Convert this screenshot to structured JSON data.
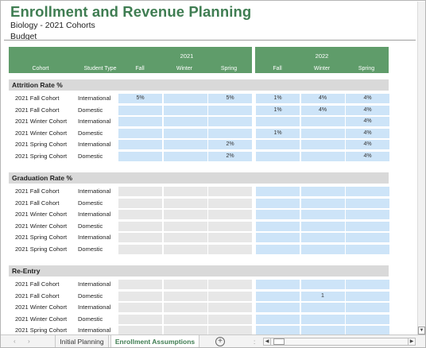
{
  "header": {
    "title": "Enrollment and Revenue Planning",
    "subtitle": "Biology - 2021 Cohorts",
    "scenario": "Budget"
  },
  "column_headers": {
    "year_2021": "2021",
    "year_2022": "2022",
    "cohort": "Cohort",
    "student_type": "Student Type",
    "fall": "Fall",
    "winter": "Winter",
    "spring": "Spring"
  },
  "sections": [
    {
      "title": "Attrition Rate %",
      "rows": [
        {
          "cohort": "2021 Fall Cohort",
          "type": "International",
          "y2021": [
            "5%",
            "",
            "5%"
          ],
          "y2022": [
            "1%",
            "4%",
            "4%"
          ]
        },
        {
          "cohort": "2021 Fall Cohort",
          "type": "Domestic",
          "y2021": [
            "",
            "",
            ""
          ],
          "y2022": [
            "1%",
            "4%",
            "4%"
          ]
        },
        {
          "cohort": "2021 Winter Cohort",
          "type": "International",
          "y2021": [
            "",
            "",
            ""
          ],
          "y2022": [
            "",
            "",
            "4%"
          ]
        },
        {
          "cohort": "2021 Winter Cohort",
          "type": "Domestic",
          "y2021": [
            "",
            "",
            ""
          ],
          "y2022": [
            "1%",
            "",
            "4%"
          ]
        },
        {
          "cohort": "2021 Spring Cohort",
          "type": "International",
          "y2021": [
            "",
            "",
            "2%"
          ],
          "y2022": [
            "",
            "",
            "4%"
          ]
        },
        {
          "cohort": "2021 Spring Cohort",
          "type": "Domestic",
          "y2021": [
            "",
            "",
            "2%"
          ],
          "y2022": [
            "",
            "",
            "4%"
          ]
        }
      ]
    },
    {
      "title": "Graduation Rate %",
      "rows": [
        {
          "cohort": "2021 Fall Cohort",
          "type": "International",
          "y2021": [
            "",
            "",
            ""
          ],
          "y2022": [
            "",
            "",
            ""
          ]
        },
        {
          "cohort": "2021 Fall Cohort",
          "type": "Domestic",
          "y2021": [
            "",
            "",
            ""
          ],
          "y2022": [
            "",
            "",
            ""
          ]
        },
        {
          "cohort": "2021 Winter Cohort",
          "type": "International",
          "y2021": [
            "",
            "",
            ""
          ],
          "y2022": [
            "",
            "",
            ""
          ]
        },
        {
          "cohort": "2021 Winter Cohort",
          "type": "Domestic",
          "y2021": [
            "",
            "",
            ""
          ],
          "y2022": [
            "",
            "",
            ""
          ]
        },
        {
          "cohort": "2021 Spring Cohort",
          "type": "International",
          "y2021": [
            "",
            "",
            ""
          ],
          "y2022": [
            "",
            "",
            ""
          ]
        },
        {
          "cohort": "2021 Spring Cohort",
          "type": "Domestic",
          "y2021": [
            "",
            "",
            ""
          ],
          "y2022": [
            "",
            "",
            ""
          ]
        }
      ]
    },
    {
      "title": "Re-Entry",
      "rows": [
        {
          "cohort": "2021 Fall Cohort",
          "type": "International",
          "y2021": [
            "",
            "",
            ""
          ],
          "y2022": [
            "",
            "",
            ""
          ]
        },
        {
          "cohort": "2021 Fall Cohort",
          "type": "Domestic",
          "y2021": [
            "",
            "",
            ""
          ],
          "y2022": [
            "",
            "1",
            ""
          ]
        },
        {
          "cohort": "2021 Winter Cohort",
          "type": "International",
          "y2021": [
            "",
            "",
            ""
          ],
          "y2022": [
            "",
            "",
            ""
          ]
        },
        {
          "cohort": "2021 Winter Cohort",
          "type": "Domestic",
          "y2021": [
            "",
            "",
            ""
          ],
          "y2022": [
            "",
            "",
            ""
          ]
        },
        {
          "cohort": "2021 Spring Cohort",
          "type": "International",
          "y2021": [
            "",
            "",
            ""
          ],
          "y2022": [
            "",
            "",
            ""
          ]
        }
      ]
    }
  ],
  "sheet_tabs": {
    "nav_prev": "‹",
    "nav_next": "›",
    "initial_planning": "Initial Planning",
    "enrollment_assumptions": "Enrollment Assumptions",
    "add_sheet": "+",
    "separator": ":"
  },
  "colors": {
    "accent_green": "#5f9c6a",
    "title_green": "#3f7d52",
    "input_blue": "#cde4f8",
    "section_gray": "#d9d9d9"
  }
}
